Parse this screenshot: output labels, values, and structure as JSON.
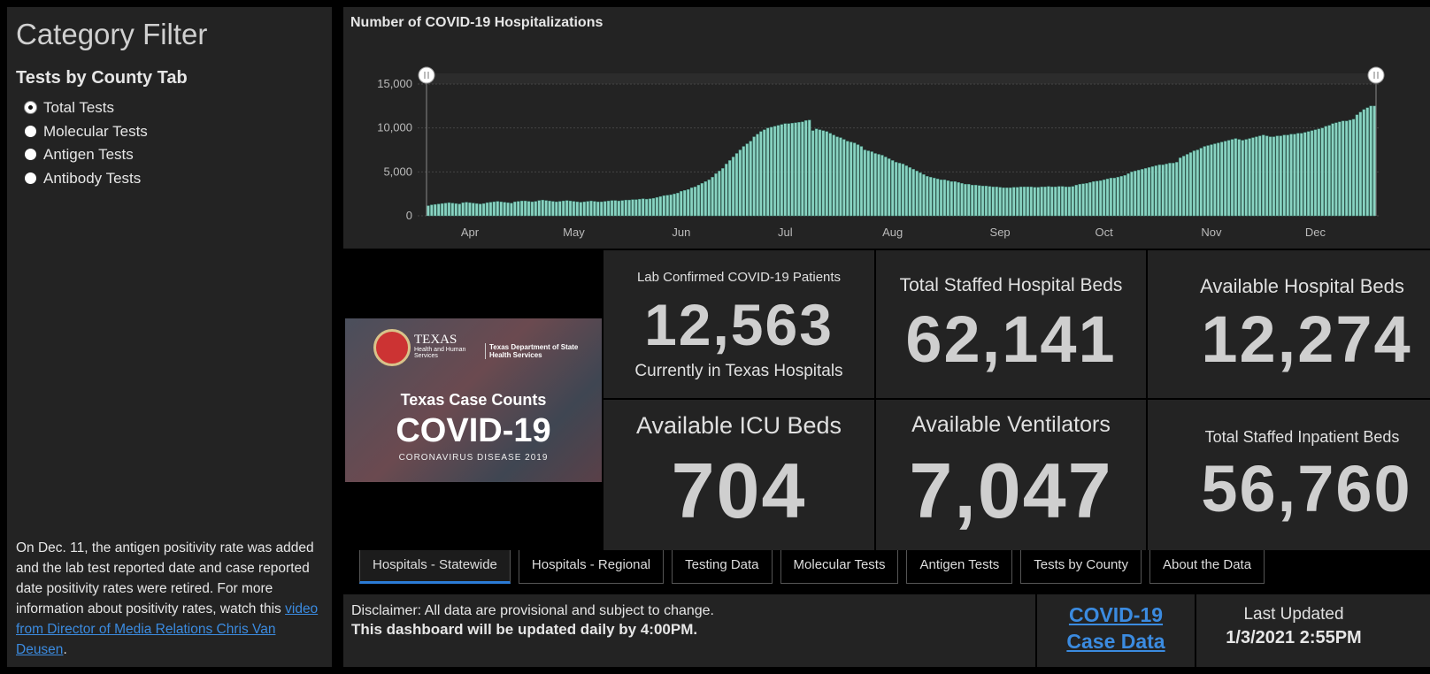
{
  "filter_panel": {
    "title": "Category Filter",
    "subtitle": "Tests by County Tab",
    "options": [
      "Total Tests",
      "Molecular Tests",
      "Antigen Tests",
      "Antibody Tests"
    ],
    "selected": 0,
    "note_text": "On Dec. 11, the antigen positivity rate was added and the lab test reported date and case reported date positivity rates were retired. For more information about positivity rates, watch this ",
    "note_link": "video from Director of Media Relations Chris Van Deusen",
    "note_end": "."
  },
  "chart_data": {
    "type": "bar",
    "title": "Number of COVID-19 Hospitalizations",
    "color": "#8ad3c2",
    "grid": true,
    "ylim": [
      0,
      15000
    ],
    "yticks": [
      0,
      {
        "value": 5000,
        "label": "5,000"
      },
      {
        "value": 10000,
        "label": "10,000"
      },
      {
        "value": 15000,
        "label": "15,000"
      }
    ],
    "categories": [
      null,
      null,
      null,
      null,
      null,
      null,
      null,
      null,
      null,
      null,
      null,
      null,
      "Apr",
      null,
      null,
      null,
      null,
      null,
      null,
      null,
      null,
      null,
      null,
      null,
      null,
      null,
      null,
      null,
      null,
      null,
      null,
      null,
      null,
      null,
      null,
      null,
      null,
      null,
      null,
      null,
      null,
      null,
      "May",
      null,
      null,
      null,
      null,
      null,
      null,
      null,
      null,
      null,
      null,
      null,
      null,
      null,
      null,
      null,
      null,
      null,
      null,
      null,
      null,
      null,
      null,
      null,
      null,
      null,
      null,
      null,
      null,
      null,
      null,
      "Jun",
      null,
      null,
      null,
      null,
      null,
      null,
      null,
      null,
      null,
      null,
      null,
      null,
      null,
      null,
      null,
      null,
      null,
      null,
      null,
      null,
      null,
      null,
      null,
      null,
      null,
      null,
      null,
      null,
      null,
      "Jul",
      null,
      null,
      null,
      null,
      null,
      null,
      null,
      null,
      null,
      null,
      null,
      null,
      null,
      null,
      null,
      null,
      null,
      null,
      null,
      null,
      null,
      null,
      null,
      null,
      null,
      null,
      null,
      null,
      null,
      null,
      "Aug",
      null,
      null,
      null,
      null,
      null,
      null,
      null,
      null,
      null,
      null,
      null,
      null,
      null,
      null,
      null,
      null,
      null,
      null,
      null,
      null,
      null,
      null,
      null,
      null,
      null,
      null,
      null,
      null,
      null,
      null,
      "Sep",
      null,
      null,
      null,
      null,
      null,
      null,
      null,
      null,
      null,
      null,
      null,
      null,
      null,
      null,
      null,
      null,
      null,
      null,
      null,
      null,
      null,
      null,
      null,
      null,
      null,
      null,
      null,
      null,
      null,
      "Oct",
      null,
      null,
      null,
      null,
      null,
      null,
      null,
      null,
      null,
      null,
      null,
      null,
      null,
      null,
      null,
      null,
      null,
      null,
      null,
      null,
      null,
      null,
      null,
      null,
      null,
      null,
      null,
      null,
      null,
      null,
      "Nov",
      null,
      null,
      null,
      null,
      null,
      null,
      null,
      null,
      null,
      null,
      null,
      null,
      null,
      null,
      null,
      null,
      null,
      null,
      null,
      null,
      null,
      null,
      null,
      null,
      null,
      null,
      null,
      null,
      null,
      "Dec",
      null,
      null,
      null,
      null,
      null,
      null,
      null,
      null,
      null,
      null,
      null,
      null,
      null,
      null,
      null,
      null,
      null
    ],
    "values": [
      1150,
      1250,
      1300,
      1350,
      1400,
      1450,
      1500,
      1450,
      1400,
      1350,
      1500,
      1550,
      1500,
      1450,
      1400,
      1350,
      1400,
      1500,
      1550,
      1600,
      1650,
      1600,
      1550,
      1500,
      1450,
      1600,
      1650,
      1700,
      1700,
      1650,
      1600,
      1650,
      1750,
      1800,
      1750,
      1700,
      1650,
      1600,
      1650,
      1700,
      1750,
      1700,
      1650,
      1600,
      1550,
      1600,
      1650,
      1700,
      1650,
      1600,
      1600,
      1650,
      1700,
      1750,
      1750,
      1700,
      1750,
      1800,
      1800,
      1850,
      1850,
      1900,
      1950,
      1900,
      1950,
      2000,
      2100,
      2200,
      2300,
      2350,
      2400,
      2500,
      2600,
      2800,
      2900,
      3000,
      3200,
      3300,
      3500,
      3700,
      3900,
      4100,
      4400,
      4800,
      5100,
      5400,
      5900,
      6300,
      6700,
      7100,
      7500,
      7900,
      8200,
      8500,
      9000,
      9300,
      9600,
      9800,
      10000,
      10100,
      10200,
      10300,
      10400,
      10500,
      10500,
      10550,
      10600,
      10650,
      10700,
      10850,
      10900,
      9700,
      9900,
      9800,
      9700,
      9600,
      9400,
      9200,
      9000,
      8900,
      8700,
      8500,
      8400,
      8300,
      8100,
      7900,
      7500,
      7400,
      7300,
      7100,
      7000,
      6900,
      6700,
      6500,
      6300,
      6100,
      6000,
      5900,
      5700,
      5500,
      5300,
      5100,
      4900,
      4700,
      4500,
      4400,
      4300,
      4200,
      4100,
      4100,
      4000,
      3900,
      3900,
      3800,
      3700,
      3600,
      3600,
      3500,
      3500,
      3450,
      3400,
      3400,
      3350,
      3300,
      3300,
      3250,
      3200,
      3200,
      3200,
      3250,
      3250,
      3300,
      3300,
      3300,
      3300,
      3250,
      3250,
      3300,
      3300,
      3350,
      3300,
      3300,
      3350,
      3350,
      3300,
      3300,
      3350,
      3500,
      3600,
      3650,
      3700,
      3800,
      3900,
      3950,
      4000,
      4100,
      4200,
      4300,
      4300,
      4400,
      4500,
      4600,
      4800,
      5000,
      5100,
      5200,
      5300,
      5400,
      5500,
      5600,
      5700,
      5800,
      5800,
      5900,
      6000,
      6000,
      6100,
      6600,
      6800,
      7000,
      7200,
      7400,
      7500,
      7700,
      7900,
      8000,
      8100,
      8200,
      8300,
      8400,
      8500,
      8600,
      8700,
      8800,
      8700,
      8600,
      8700,
      8800,
      8900,
      9000,
      9100,
      9200,
      9100,
      9000,
      9000,
      9100,
      9100,
      9200,
      9200,
      9300,
      9300,
      9400,
      9400,
      9500,
      9600,
      9700,
      9800,
      9900,
      10000,
      10200,
      10300,
      10500,
      10600,
      10700,
      10800,
      10800,
      10900,
      11000,
      11500,
      11800,
      12100,
      12300,
      12500,
      12500
    ]
  },
  "logo": {
    "org": "TEXAS",
    "org_sub": "Health and Human Services",
    "dept": "Texas Department of State Health Services",
    "heading": "Texas Case Counts",
    "title": "COVID-19",
    "subtitle": "CORONAVIRUS DISEASE 2019"
  },
  "kpis": [
    {
      "label": "Lab Confirmed COVID-19 Patients",
      "value": "12,563",
      "sublabel": "Currently in Texas Hospitals"
    },
    {
      "label": "Total Staffed Hospital Beds",
      "value": "62,141"
    },
    {
      "label": "Available Hospital Beds",
      "value": "12,274"
    },
    {
      "label": "Available ICU Beds",
      "value": "704"
    },
    {
      "label": "Available Ventilators",
      "value": "7,047"
    },
    {
      "label": "Total Staffed Inpatient Beds",
      "value": "56,760"
    }
  ],
  "tabs": [
    "Hospitals - Statewide",
    "Hospitals - Regional",
    "Testing Data",
    "Molecular Tests",
    "Antigen Tests",
    "Tests by County",
    "About the Data"
  ],
  "active_tab": 0,
  "footer": {
    "disclaimer": "Disclaimer: All data are provisional and subject to change.",
    "notice": "This dashboard will be updated daily by 4:00PM.",
    "link": "COVID-19 Case Data",
    "updated_label": "Last Updated",
    "updated_value": "1/3/2021 2:55PM"
  }
}
